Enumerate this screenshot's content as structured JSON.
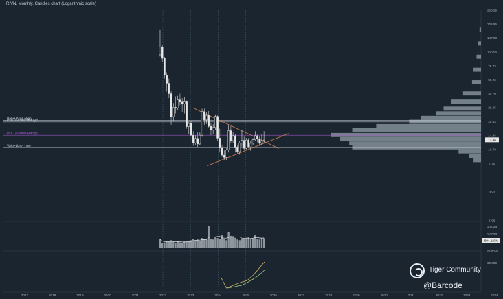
{
  "header": {
    "title": "RIVN, Monthly, Candles chart (Logarithmic scale)"
  },
  "watermark": {
    "name": "Tiger Community",
    "handle": "@Barcode"
  },
  "chart_data": {
    "type": "candlestick",
    "title": "RIVN, Monthly, Candles chart (Logarithmic scale)",
    "scale": "log",
    "price_ticks": [
      285.59,
      205.55,
      147.98,
      106.56,
      76.73,
      55.25,
      39.79,
      28.65,
      20.63,
      14.86,
      10.7,
      7.7,
      3.93,
      1.99
    ],
    "volume_ticks": [
      "1.500B",
      "1.000B",
      "40.00M"
    ],
    "indicator_ticks": [
      "35.000"
    ],
    "x_ticks": [
      "2017",
      "2018",
      "2019",
      "2020",
      "2021",
      "2022",
      "2023",
      "2024",
      "2025",
      "2026",
      "2027",
      "2028",
      "2029",
      "2030",
      "2031",
      "2032",
      "2033",
      "2034"
    ],
    "last_price_label": "13.46",
    "volume_value_label": "694.123M",
    "levels": [
      {
        "name": "Value Area High",
        "value": 21.3,
        "color": "#c9d1d9"
      },
      {
        "name": "POC (Visible Range)",
        "value": 20.5,
        "color": "#c9d1d9"
      },
      {
        "name": "POC (Visible Range)",
        "value": 15.0,
        "color": "#b05ad8"
      },
      {
        "name": "Value Area Low",
        "value": 11.1,
        "color": "#c9d1d9"
      }
    ],
    "candles": [
      {
        "t": 2021.9,
        "o": 100.0,
        "h": 179.0,
        "l": 96.0,
        "c": 120.0
      },
      {
        "t": 2021.98,
        "o": 120.0,
        "h": 125.0,
        "l": 84.0,
        "c": 92.0
      },
      {
        "t": 2022.06,
        "o": 92.0,
        "h": 95.0,
        "l": 57.0,
        "c": 62.0
      },
      {
        "t": 2022.14,
        "o": 62.0,
        "h": 66.0,
        "l": 42.0,
        "c": 51.0
      },
      {
        "t": 2022.22,
        "o": 51.0,
        "h": 57.0,
        "l": 36.0,
        "c": 40.0
      },
      {
        "t": 2022.3,
        "o": 40.0,
        "h": 43.0,
        "l": 19.2,
        "c": 23.2
      },
      {
        "t": 2022.38,
        "o": 23.2,
        "h": 32.0,
        "l": 21.0,
        "c": 29.0
      },
      {
        "t": 2022.46,
        "o": 29.0,
        "h": 37.5,
        "l": 25.0,
        "c": 28.5
      },
      {
        "t": 2022.54,
        "o": 28.5,
        "h": 38.0,
        "l": 27.0,
        "c": 34.5
      },
      {
        "t": 2022.62,
        "o": 34.5,
        "h": 40.0,
        "l": 30.5,
        "c": 32.8
      },
      {
        "t": 2022.7,
        "o": 32.8,
        "h": 36.0,
        "l": 26.0,
        "c": 31.5
      },
      {
        "t": 2022.78,
        "o": 31.5,
        "h": 37.0,
        "l": 25.0,
        "c": 33.0
      },
      {
        "t": 2022.86,
        "o": 33.0,
        "h": 34.0,
        "l": 17.5,
        "c": 18.4
      },
      {
        "t": 2022.94,
        "o": 18.4,
        "h": 20.5,
        "l": 15.5,
        "c": 19.8
      },
      {
        "t": 2023.02,
        "o": 19.8,
        "h": 21.0,
        "l": 14.5,
        "c": 15.0
      },
      {
        "t": 2023.1,
        "o": 15.0,
        "h": 16.5,
        "l": 11.7,
        "c": 12.5
      },
      {
        "t": 2023.18,
        "o": 12.5,
        "h": 15.0,
        "l": 12.0,
        "c": 13.9
      },
      {
        "t": 2023.26,
        "o": 13.9,
        "h": 16.0,
        "l": 11.4,
        "c": 12.2
      },
      {
        "t": 2023.34,
        "o": 12.2,
        "h": 16.0,
        "l": 11.8,
        "c": 15.0
      },
      {
        "t": 2023.42,
        "o": 15.0,
        "h": 28.0,
        "l": 14.5,
        "c": 26.2
      },
      {
        "t": 2023.5,
        "o": 26.2,
        "h": 28.1,
        "l": 19.0,
        "c": 21.5
      },
      {
        "t": 2023.58,
        "o": 21.5,
        "h": 26.0,
        "l": 19.5,
        "c": 24.0
      },
      {
        "t": 2023.66,
        "o": 24.0,
        "h": 26.5,
        "l": 18.0,
        "c": 18.5
      },
      {
        "t": 2023.74,
        "o": 18.5,
        "h": 20.0,
        "l": 15.0,
        "c": 17.0
      },
      {
        "t": 2023.82,
        "o": 17.0,
        "h": 19.5,
        "l": 15.5,
        "c": 18.0
      },
      {
        "t": 2023.9,
        "o": 18.0,
        "h": 24.5,
        "l": 17.0,
        "c": 23.4
      },
      {
        "t": 2023.98,
        "o": 23.4,
        "h": 24.0,
        "l": 13.0,
        "c": 14.0
      },
      {
        "t": 2024.06,
        "o": 14.0,
        "h": 17.5,
        "l": 10.0,
        "c": 11.1
      },
      {
        "t": 2024.14,
        "o": 11.1,
        "h": 12.0,
        "l": 9.0,
        "c": 9.4
      },
      {
        "t": 2024.22,
        "o": 9.4,
        "h": 10.5,
        "l": 8.3,
        "c": 8.9
      },
      {
        "t": 2024.3,
        "o": 8.9,
        "h": 11.0,
        "l": 8.3,
        "c": 10.6
      },
      {
        "t": 2024.38,
        "o": 10.6,
        "h": 18.8,
        "l": 10.0,
        "c": 16.7
      },
      {
        "t": 2024.46,
        "o": 16.7,
        "h": 18.5,
        "l": 12.5,
        "c": 13.2
      },
      {
        "t": 2024.54,
        "o": 13.2,
        "h": 16.0,
        "l": 12.5,
        "c": 14.8
      },
      {
        "t": 2024.62,
        "o": 14.8,
        "h": 15.5,
        "l": 10.0,
        "c": 11.2
      },
      {
        "t": 2024.7,
        "o": 11.2,
        "h": 12.0,
        "l": 9.8,
        "c": 10.2
      },
      {
        "t": 2024.78,
        "o": 10.2,
        "h": 13.0,
        "l": 9.5,
        "c": 12.5
      },
      {
        "t": 2024.86,
        "o": 12.5,
        "h": 16.9,
        "l": 11.5,
        "c": 13.3
      },
      {
        "t": 2024.94,
        "o": 13.3,
        "h": 14.5,
        "l": 10.5,
        "c": 11.0
      },
      {
        "t": 2025.02,
        "o": 11.0,
        "h": 14.0,
        "l": 10.8,
        "c": 13.4
      },
      {
        "t": 2025.1,
        "o": 13.4,
        "h": 14.0,
        "l": 11.0,
        "c": 11.4
      },
      {
        "t": 2025.18,
        "o": 11.4,
        "h": 13.0,
        "l": 10.4,
        "c": 12.4
      },
      {
        "t": 2025.26,
        "o": 12.4,
        "h": 14.0,
        "l": 11.8,
        "c": 13.5
      },
      {
        "t": 2025.34,
        "o": 13.5,
        "h": 16.5,
        "l": 13.0,
        "c": 14.8
      },
      {
        "t": 2025.42,
        "o": 14.8,
        "h": 15.2,
        "l": 12.7,
        "c": 13.7
      },
      {
        "t": 2025.5,
        "o": 13.7,
        "h": 14.5,
        "l": 11.7,
        "c": 12.4
      },
      {
        "t": 2025.58,
        "o": 12.4,
        "h": 15.5,
        "l": 12.0,
        "c": 13.2
      },
      {
        "t": 2025.66,
        "o": 13.2,
        "h": 16.5,
        "l": 12.5,
        "c": 13.4
      }
    ],
    "volume_profile": [
      {
        "p": 180.0,
        "w": 0.01
      },
      {
        "p": 130.0,
        "w": 0.02
      },
      {
        "p": 95.0,
        "w": 0.03
      },
      {
        "p": 70.0,
        "w": 0.05
      },
      {
        "p": 52.0,
        "w": 0.06
      },
      {
        "p": 40.0,
        "w": 0.12
      },
      {
        "p": 33.0,
        "w": 0.2
      },
      {
        "p": 28.0,
        "w": 0.25
      },
      {
        "p": 25.0,
        "w": 0.3
      },
      {
        "p": 22.5,
        "w": 0.4
      },
      {
        "p": 20.5,
        "w": 0.48
      },
      {
        "p": 18.5,
        "w": 0.7
      },
      {
        "p": 16.8,
        "w": 0.86
      },
      {
        "p": 15.0,
        "w": 1.0
      },
      {
        "p": 13.6,
        "w": 0.94
      },
      {
        "p": 12.3,
        "w": 0.88
      },
      {
        "p": 11.2,
        "w": 0.86
      },
      {
        "p": 10.2,
        "w": 0.15
      },
      {
        "p": 9.2,
        "w": 0.08
      },
      {
        "p": 8.3,
        "w": 0.05
      }
    ],
    "volume": [
      {
        "t": 2021.9,
        "v": 0.62
      },
      {
        "t": 2021.98,
        "v": 0.35
      },
      {
        "t": 2022.06,
        "v": 0.4
      },
      {
        "t": 2022.14,
        "v": 0.45
      },
      {
        "t": 2022.22,
        "v": 0.48
      },
      {
        "t": 2022.3,
        "v": 0.55
      },
      {
        "t": 2022.38,
        "v": 0.42
      },
      {
        "t": 2022.46,
        "v": 0.38
      },
      {
        "t": 2022.54,
        "v": 0.45
      },
      {
        "t": 2022.62,
        "v": 0.4
      },
      {
        "t": 2022.7,
        "v": 0.38
      },
      {
        "t": 2022.78,
        "v": 0.5
      },
      {
        "t": 2022.86,
        "v": 0.48
      },
      {
        "t": 2022.94,
        "v": 0.52
      },
      {
        "t": 2023.02,
        "v": 0.55
      },
      {
        "t": 2023.1,
        "v": 0.62
      },
      {
        "t": 2023.18,
        "v": 0.55
      },
      {
        "t": 2023.26,
        "v": 0.6
      },
      {
        "t": 2023.34,
        "v": 0.5
      },
      {
        "t": 2023.42,
        "v": 0.7
      },
      {
        "t": 2023.5,
        "v": 0.62
      },
      {
        "t": 2023.58,
        "v": 0.58
      },
      {
        "t": 2023.66,
        "v": 1.55
      },
      {
        "t": 2023.74,
        "v": 0.65
      },
      {
        "t": 2023.82,
        "v": 0.6
      },
      {
        "t": 2023.9,
        "v": 0.75
      },
      {
        "t": 2023.98,
        "v": 0.7
      },
      {
        "t": 2024.06,
        "v": 0.65
      },
      {
        "t": 2024.14,
        "v": 0.9
      },
      {
        "t": 2024.22,
        "v": 0.62
      },
      {
        "t": 2024.3,
        "v": 0.55
      },
      {
        "t": 2024.38,
        "v": 1.1
      },
      {
        "t": 2024.46,
        "v": 0.85
      },
      {
        "t": 2024.54,
        "v": 0.8
      },
      {
        "t": 2024.62,
        "v": 0.72
      },
      {
        "t": 2024.7,
        "v": 0.6
      },
      {
        "t": 2024.78,
        "v": 0.55
      },
      {
        "t": 2024.86,
        "v": 0.65
      },
      {
        "t": 2024.94,
        "v": 0.7
      },
      {
        "t": 2025.02,
        "v": 0.72
      },
      {
        "t": 2025.1,
        "v": 0.8
      },
      {
        "t": 2025.18,
        "v": 0.62
      },
      {
        "t": 2025.26,
        "v": 0.68
      },
      {
        "t": 2025.34,
        "v": 0.9
      },
      {
        "t": 2025.42,
        "v": 0.65
      },
      {
        "t": 2025.5,
        "v": 0.6
      },
      {
        "t": 2025.58,
        "v": 0.72
      },
      {
        "t": 2025.66,
        "v": 0.69
      }
    ],
    "trendlines": [
      {
        "t1": 2023.1,
        "p1": 28.5,
        "t2": 2026.2,
        "p2": 11.0,
        "color": "#c07850"
      },
      {
        "t1": 2023.6,
        "p1": 7.3,
        "t2": 2026.55,
        "p2": 15.6,
        "color": "#c07850"
      }
    ]
  }
}
